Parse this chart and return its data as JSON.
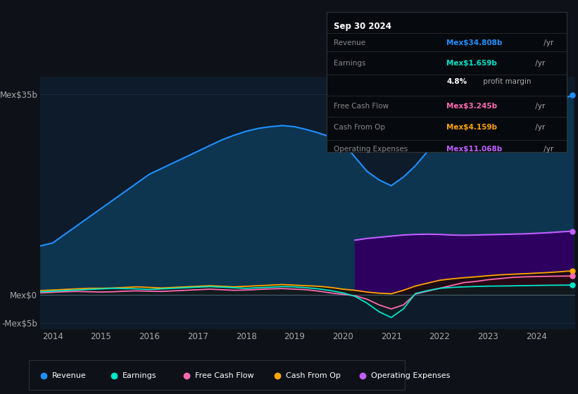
{
  "background_color": "#0e1117",
  "plot_bg_color": "#0d1b2a",
  "title": "Sep 30 2024",
  "info_box": {
    "Revenue": {
      "value": "Mex$34.808b",
      "color": "#1e90ff"
    },
    "Earnings": {
      "value": "Mex$1.659b",
      "color": "#00e5cc"
    },
    "profit_margin": "4.8%",
    "profit_margin_text": " profit margin",
    "Free Cash Flow": {
      "value": "Mex$3.245b",
      "color": "#ff69b4"
    },
    "Cash From Op": {
      "value": "Mex$4.159b",
      "color": "#ffa500"
    },
    "Operating Expenses": {
      "value": "Mex$11.068b",
      "color": "#bf5fff"
    }
  },
  "years": [
    2013.75,
    2014.0,
    2014.25,
    2014.5,
    2014.75,
    2015.0,
    2015.25,
    2015.5,
    2015.75,
    2016.0,
    2016.25,
    2016.5,
    2016.75,
    2017.0,
    2017.25,
    2017.5,
    2017.75,
    2018.0,
    2018.25,
    2018.5,
    2018.75,
    2019.0,
    2019.25,
    2019.5,
    2019.75,
    2020.0,
    2020.25,
    2020.5,
    2020.75,
    2021.0,
    2021.25,
    2021.5,
    2021.75,
    2022.0,
    2022.25,
    2022.5,
    2022.75,
    2023.0,
    2023.25,
    2023.5,
    2023.75,
    2024.0,
    2024.25,
    2024.5,
    2024.75
  ],
  "revenue": [
    8.5,
    9.0,
    10.5,
    12.0,
    13.5,
    15.0,
    16.5,
    18.0,
    19.5,
    21.0,
    22.0,
    23.0,
    24.0,
    25.0,
    26.0,
    27.0,
    27.8,
    28.5,
    29.0,
    29.3,
    29.5,
    29.3,
    28.8,
    28.2,
    27.5,
    26.5,
    24.0,
    21.5,
    20.0,
    19.0,
    20.5,
    22.5,
    25.0,
    27.0,
    28.2,
    29.0,
    30.0,
    30.8,
    31.3,
    31.8,
    32.3,
    32.8,
    33.3,
    34.0,
    34.808
  ],
  "earnings": [
    0.5,
    0.6,
    0.7,
    0.8,
    0.9,
    1.0,
    1.1,
    1.05,
    1.0,
    0.9,
    1.0,
    1.1,
    1.2,
    1.3,
    1.4,
    1.3,
    1.2,
    1.1,
    1.2,
    1.3,
    1.4,
    1.35,
    1.2,
    1.0,
    0.7,
    0.3,
    -0.3,
    -1.5,
    -3.0,
    -4.0,
    -2.5,
    0.2,
    0.7,
    1.1,
    1.25,
    1.35,
    1.42,
    1.48,
    1.5,
    1.53,
    1.57,
    1.6,
    1.63,
    1.65,
    1.659
  ],
  "free_cash_flow": [
    0.3,
    0.4,
    0.5,
    0.55,
    0.5,
    0.45,
    0.5,
    0.6,
    0.65,
    0.6,
    0.55,
    0.65,
    0.75,
    0.85,
    0.95,
    0.85,
    0.75,
    0.8,
    0.9,
    1.0,
    1.05,
    0.95,
    0.85,
    0.6,
    0.3,
    0.05,
    -0.2,
    -0.8,
    -1.8,
    -2.5,
    -1.8,
    0.1,
    0.6,
    1.1,
    1.6,
    2.1,
    2.3,
    2.6,
    2.8,
    3.0,
    3.1,
    3.15,
    3.2,
    3.23,
    3.245
  ],
  "cash_from_op": [
    0.7,
    0.8,
    0.9,
    1.0,
    1.1,
    1.1,
    1.15,
    1.25,
    1.35,
    1.25,
    1.15,
    1.25,
    1.35,
    1.45,
    1.55,
    1.45,
    1.35,
    1.45,
    1.55,
    1.65,
    1.75,
    1.65,
    1.55,
    1.45,
    1.25,
    0.95,
    0.75,
    0.45,
    0.25,
    0.15,
    0.75,
    1.5,
    2.0,
    2.5,
    2.75,
    2.95,
    3.1,
    3.3,
    3.45,
    3.55,
    3.65,
    3.75,
    3.85,
    4.0,
    4.159
  ],
  "op_expenses": [
    0,
    0,
    0,
    0,
    0,
    0,
    0,
    0,
    0,
    0,
    0,
    0,
    0,
    0,
    0,
    0,
    0,
    0,
    0,
    0,
    0,
    0,
    0,
    0,
    0,
    0,
    9.5,
    9.8,
    10.0,
    10.2,
    10.4,
    10.5,
    10.55,
    10.5,
    10.4,
    10.35,
    10.4,
    10.45,
    10.5,
    10.55,
    10.6,
    10.7,
    10.8,
    10.95,
    11.068
  ],
  "ylim": [
    -6,
    38
  ],
  "ylim_plot": [
    -6,
    38
  ],
  "ytick_vals": [
    -5,
    0,
    35
  ],
  "ytick_labels": [
    "-Mex$5b",
    "Mex$0",
    "Mex$35b"
  ],
  "xtick_years": [
    2014,
    2015,
    2016,
    2017,
    2018,
    2019,
    2020,
    2021,
    2022,
    2023,
    2024
  ],
  "revenue_color": "#1e90ff",
  "revenue_fill": "#0d3550",
  "earnings_color": "#00e5cc",
  "earnings_fill": "#0a2020",
  "fcf_color": "#ff69b4",
  "fcf_fill": "#2a0a18",
  "cfop_color": "#ffa500",
  "cfop_fill": "#1a1000",
  "opex_color": "#bf5fff",
  "opex_fill": "#2d0060",
  "grid_color": "#1e3040",
  "text_color": "#aaaaaa",
  "legend_items": [
    {
      "label": "Revenue",
      "color": "#1e90ff"
    },
    {
      "label": "Earnings",
      "color": "#00e5cc"
    },
    {
      "label": "Free Cash Flow",
      "color": "#ff69b4"
    },
    {
      "label": "Cash From Op",
      "color": "#ffa500"
    },
    {
      "label": "Operating Expenses",
      "color": "#bf5fff"
    }
  ]
}
